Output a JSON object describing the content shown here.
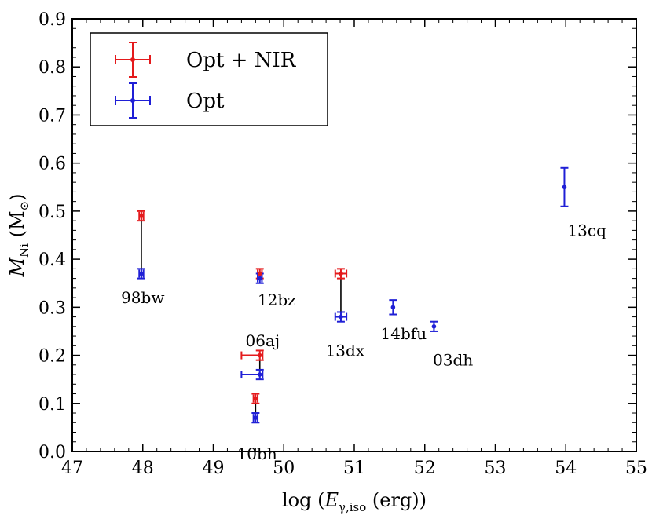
{
  "chart_data": {
    "type": "scatter",
    "title": "",
    "xlabel": "log (E_γ,iso (erg))",
    "xlabel_parts": {
      "pre": "log (",
      "sym": "E",
      "sub": "γ,iso",
      "post": " (erg))"
    },
    "ylabel": "M_Ni (M_⊙)",
    "ylabel_parts": {
      "sym": "M",
      "sub": "Ni",
      "unit_pre": "(M",
      "unit_sub": "⊙",
      "unit_post": ")"
    },
    "xlim": [
      47,
      55
    ],
    "ylim": [
      0.0,
      0.9
    ],
    "xticks": [
      "47",
      "48",
      "49",
      "50",
      "51",
      "52",
      "53",
      "54",
      "55"
    ],
    "yticks": [
      "0.0",
      "0.1",
      "0.2",
      "0.3",
      "0.4",
      "0.5",
      "0.6",
      "0.7",
      "0.8",
      "0.9"
    ],
    "legend": {
      "position": "top-left",
      "entries": [
        {
          "label": "Opt + NIR",
          "color": "#e41a1c"
        },
        {
          "label": "Opt",
          "color": "#1f1fd6"
        }
      ]
    },
    "series": [
      {
        "name": "Opt + NIR",
        "color": "#e41a1c",
        "points": [
          {
            "sn": "98bw",
            "x": 47.98,
            "y": 0.49,
            "xerr_lo": 0.03,
            "xerr_hi": 0.03,
            "yerr": 0.01
          },
          {
            "sn": "12bz",
            "x": 49.66,
            "y": 0.37,
            "xerr_lo": 0.03,
            "xerr_hi": 0.03,
            "yerr": 0.01
          },
          {
            "sn": "13dx",
            "x": 50.81,
            "y": 0.37,
            "xerr_lo": 0.08,
            "xerr_hi": 0.08,
            "yerr": 0.01
          },
          {
            "sn": "06aj",
            "x": 49.66,
            "y": 0.2,
            "xerr_lo": 0.26,
            "xerr_hi": 0.04,
            "yerr": 0.01
          },
          {
            "sn": "10bh",
            "x": 49.6,
            "y": 0.11,
            "xerr_lo": 0.03,
            "xerr_hi": 0.03,
            "yerr": 0.01
          }
        ]
      },
      {
        "name": "Opt",
        "color": "#1f1fd6",
        "points": [
          {
            "sn": "98bw",
            "x": 47.98,
            "y": 0.37,
            "xerr_lo": 0.03,
            "xerr_hi": 0.03,
            "yerr": 0.01
          },
          {
            "sn": "12bz",
            "x": 49.66,
            "y": 0.36,
            "xerr_lo": 0.03,
            "xerr_hi": 0.03,
            "yerr": 0.01
          },
          {
            "sn": "13dx",
            "x": 50.81,
            "y": 0.28,
            "xerr_lo": 0.08,
            "xerr_hi": 0.08,
            "yerr": 0.01
          },
          {
            "sn": "06aj",
            "x": 49.66,
            "y": 0.16,
            "xerr_lo": 0.26,
            "xerr_hi": 0.04,
            "yerr": 0.01
          },
          {
            "sn": "10bh",
            "x": 49.6,
            "y": 0.07,
            "xerr_lo": 0.03,
            "xerr_hi": 0.03,
            "yerr": 0.01
          },
          {
            "sn": "14bfu",
            "x": 51.55,
            "y": 0.3,
            "xerr_lo": 0.0,
            "xerr_hi": 0.0,
            "yerr": 0.015
          },
          {
            "sn": "03dh",
            "x": 52.13,
            "y": 0.26,
            "xerr_lo": 0.0,
            "xerr_hi": 0.0,
            "yerr": 0.01
          },
          {
            "sn": "13cq",
            "x": 53.98,
            "y": 0.55,
            "xerr_lo": 0.0,
            "xerr_hi": 0.0,
            "yerr": 0.04
          }
        ]
      }
    ],
    "connectors": [
      {
        "sn": "98bw",
        "x": 47.98,
        "y1": 0.49,
        "y2": 0.37
      },
      {
        "sn": "12bz",
        "x": 49.66,
        "y1": 0.37,
        "y2": 0.36
      },
      {
        "sn": "13dx",
        "x": 50.81,
        "y1": 0.37,
        "y2": 0.28
      },
      {
        "sn": "06aj",
        "x": 49.66,
        "y1": 0.2,
        "y2": 0.16
      },
      {
        "sn": "10bh",
        "x": 49.6,
        "y1": 0.11,
        "y2": 0.07
      }
    ],
    "annotations": [
      {
        "text": "98bw",
        "x": 48.0,
        "y": 0.32
      },
      {
        "text": "12bz",
        "x": 49.9,
        "y": 0.315
      },
      {
        "text": "06aj",
        "x": 49.7,
        "y": 0.23
      },
      {
        "text": "13dx",
        "x": 50.87,
        "y": 0.21
      },
      {
        "text": "14bfu",
        "x": 51.7,
        "y": 0.245
      },
      {
        "text": "03dh",
        "x": 52.4,
        "y": 0.19
      },
      {
        "text": "13cq",
        "x": 54.3,
        "y": 0.46
      },
      {
        "text": "10bh",
        "x": 49.62,
        "y": -0.005
      }
    ],
    "grid": false
  }
}
